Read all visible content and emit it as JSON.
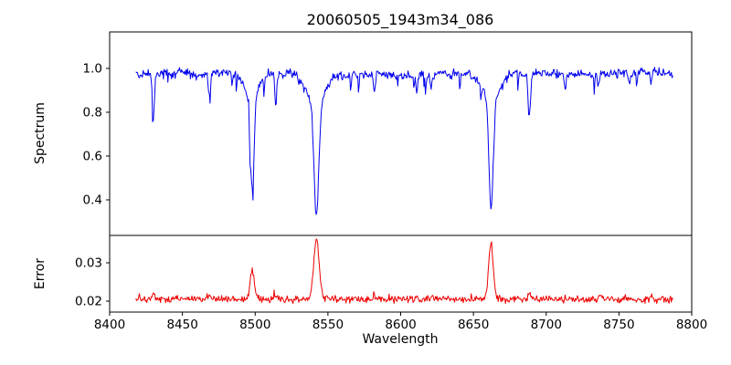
{
  "chart_data": {
    "type": "line",
    "title": "20060505_1943m34_086",
    "xlabel": "Wavelength",
    "xlim": [
      8400,
      8800
    ],
    "x_start": 8418,
    "x_end": 8787,
    "step": 0.5,
    "seed": 42,
    "grid": false,
    "legend": false,
    "colors": {
      "spectrum": "#0000ee",
      "error": "#ee0000",
      "axis": "#000000",
      "background": "#ffffff"
    },
    "xticks": [
      {
        "value": 8400,
        "label": "8400"
      },
      {
        "value": 8450,
        "label": "8450"
      },
      {
        "value": 8500,
        "label": "8500"
      },
      {
        "value": 8550,
        "label": "8550"
      },
      {
        "value": 8600,
        "label": "8600"
      },
      {
        "value": 8650,
        "label": "8650"
      },
      {
        "value": 8700,
        "label": "8700"
      },
      {
        "value": 8750,
        "label": "8750"
      },
      {
        "value": 8800,
        "label": "8800"
      }
    ],
    "subplots": [
      {
        "name": "spectrum",
        "ylabel": "Spectrum",
        "ylim": [
          0.2375,
          1.1667
        ],
        "yticks": [
          {
            "value": 0.4,
            "label": "0.4"
          },
          {
            "value": 0.6,
            "label": "0.6"
          },
          {
            "value": 0.8,
            "label": "0.8"
          },
          {
            "value": 1.0,
            "label": "1.0"
          }
        ],
        "continuum": 0.975,
        "noise": 0.0095,
        "micro_dip_probability": 0.05,
        "micro_dip_max_depth": 0.09,
        "absorption_lines": [
          {
            "center": 8498.0,
            "min": 0.45,
            "sigma": 1.2,
            "strong": true,
            "error_amp": 0.0075
          },
          {
            "center": 8542.1,
            "min": 0.33,
            "sigma": 1.6,
            "strong": true,
            "error_amp": 0.0155
          },
          {
            "center": 8662.1,
            "min": 0.35,
            "sigma": 1.4,
            "strong": true,
            "error_amp": 0.0145
          },
          {
            "center": 8430.0,
            "min": 0.79,
            "sigma": 0.7,
            "strong": false
          },
          {
            "center": 8468.5,
            "min": 0.86,
            "sigma": 0.7,
            "strong": false
          },
          {
            "center": 8514.1,
            "min": 0.83,
            "sigma": 0.7,
            "strong": false
          },
          {
            "center": 8582.0,
            "min": 0.89,
            "sigma": 0.7,
            "strong": false
          },
          {
            "center": 8611.0,
            "min": 0.9,
            "sigma": 0.6,
            "strong": false
          },
          {
            "center": 8621.0,
            "min": 0.92,
            "sigma": 0.6,
            "strong": false
          },
          {
            "center": 8688.6,
            "min": 0.78,
            "sigma": 0.8,
            "strong": false
          },
          {
            "center": 8713.0,
            "min": 0.91,
            "sigma": 0.6,
            "strong": false
          },
          {
            "center": 8736.0,
            "min": 0.92,
            "sigma": 0.6,
            "strong": false
          },
          {
            "center": 8757.0,
            "min": 0.93,
            "sigma": 0.6,
            "strong": false
          },
          {
            "center": 8772.0,
            "min": 0.91,
            "sigma": 0.6,
            "strong": false
          }
        ]
      },
      {
        "name": "error",
        "ylabel": "Error",
        "ylim": [
          0.01714,
          0.03714
        ],
        "yticks": [
          {
            "value": 0.02,
            "label": "0.02"
          },
          {
            "value": 0.03,
            "label": "0.03"
          }
        ],
        "baseline": 0.0205,
        "noise": 0.00045,
        "minor_bump_scale": 0.008
      }
    ]
  }
}
